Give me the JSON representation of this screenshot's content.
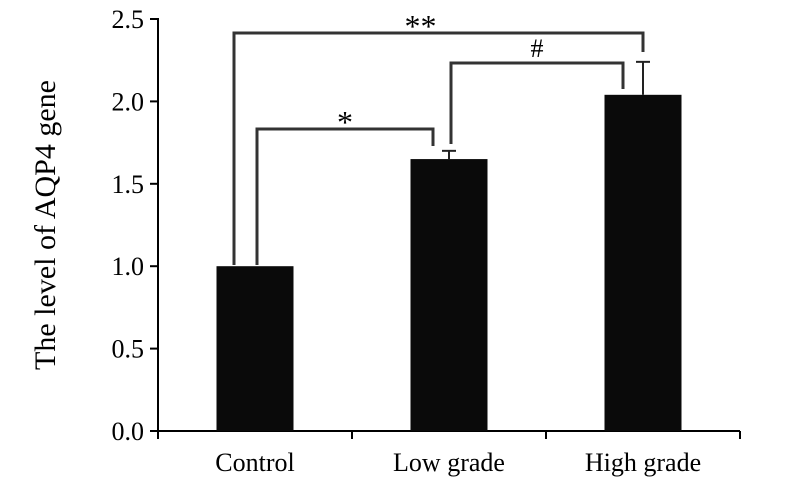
{
  "chart_data": {
    "type": "bar",
    "title": "",
    "xlabel": "",
    "ylabel": "The level of AQP4 gene",
    "categories": [
      "Control",
      "Low grade",
      "High grade"
    ],
    "values": [
      1.0,
      1.65,
      2.04
    ],
    "error": [
      0,
      0.05,
      0.2
    ],
    "ylim": [
      0,
      2.5
    ],
    "yticks": [
      "0.0",
      "0.5",
      "1.0",
      "1.5",
      "2.0",
      "2.5"
    ],
    "bar_color": "#0a0a0a",
    "grid": false,
    "annotations": [
      {
        "from": "Control",
        "to": "Low grade",
        "label": "*"
      },
      {
        "from": "Low grade",
        "to": "High grade",
        "label": "#"
      },
      {
        "from": "Control",
        "to": "High grade",
        "label": "**"
      }
    ]
  }
}
